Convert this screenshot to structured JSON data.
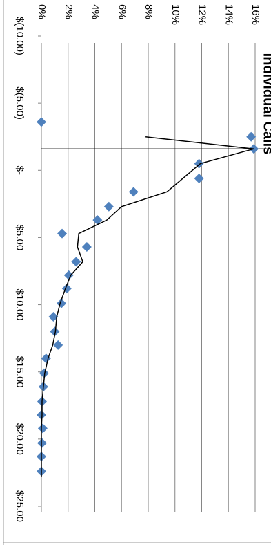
{
  "chart_data": {
    "type": "scatter",
    "title": "Individual Calls",
    "rotated": true,
    "xlim": [
      -10,
      25
    ],
    "xticks": [
      {
        "value": -10,
        "label": "$(10.00)"
      },
      {
        "value": -5,
        "label": "$(5.00)"
      },
      {
        "value": 0,
        "label": "$-"
      },
      {
        "value": 5,
        "label": "$5.00"
      },
      {
        "value": 10,
        "label": "$10.00"
      },
      {
        "value": 15,
        "label": "$15.00"
      },
      {
        "value": 20,
        "label": "$20.00"
      },
      {
        "value": 25,
        "label": "$25.00"
      }
    ],
    "ylim": [
      0,
      16
    ],
    "yticks": [
      {
        "value": 0,
        "label": "0%"
      },
      {
        "value": 2,
        "label": "2%"
      },
      {
        "value": 4,
        "label": "4%"
      },
      {
        "value": 6,
        "label": "6%"
      },
      {
        "value": 8,
        "label": "8%"
      },
      {
        "value": 10,
        "label": "10%"
      },
      {
        "value": 12,
        "label": "12%"
      },
      {
        "value": 14,
        "label": "14%"
      },
      {
        "value": 16,
        "label": "16%"
      }
    ],
    "grid": true,
    "vline": -1.6,
    "series": [
      {
        "kind": "points",
        "color": "#4f81bd",
        "x": [
          -3.6,
          -2.5,
          -1.6,
          -0.5,
          0.6,
          1.6,
          2.7,
          3.7,
          4.7,
          5.7,
          6.8,
          7.8,
          8.8,
          9.9,
          10.9,
          12.0,
          13.0,
          14.0,
          15.1,
          16.1,
          17.2,
          18.2,
          19.2,
          20.3,
          21.3,
          22.4
        ],
        "values": [
          0,
          15.7,
          15.9,
          11.8,
          11.8,
          6.9,
          5.05,
          4.2,
          1.55,
          3.4,
          2.6,
          2.05,
          1.9,
          1.5,
          0.9,
          1.0,
          1.25,
          0.35,
          0.2,
          0.15,
          0.05,
          0,
          0.1,
          0.05,
          0,
          0
        ]
      },
      {
        "kind": "line",
        "color": "#000000",
        "x": [
          -2.5,
          -1.6,
          -0.5,
          1.6,
          2.7,
          3.7,
          4.7,
          5.7,
          6.8,
          7.8,
          8.8,
          9.9,
          10.9,
          12.0,
          13.0,
          14.0,
          15.1,
          16.1,
          17.2,
          18.2,
          19.2,
          20.3,
          21.3,
          22.8
        ],
        "values": [
          7.8,
          15.9,
          11.9,
          9.4,
          6.0,
          4.9,
          2.8,
          2.7,
          3.1,
          2.2,
          1.8,
          1.4,
          1.15,
          1.05,
          0.85,
          0.5,
          0.25,
          0.15,
          0.05,
          0.05,
          0,
          0,
          0,
          0
        ]
      }
    ]
  }
}
